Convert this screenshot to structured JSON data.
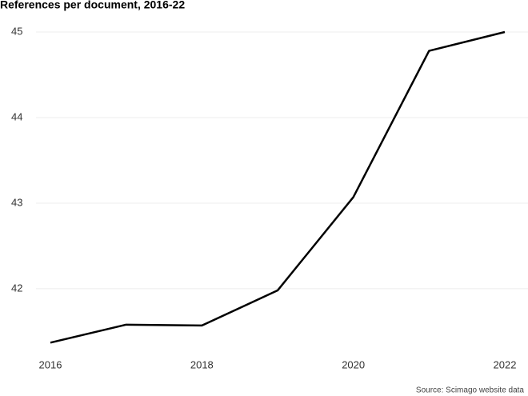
{
  "chart_data": {
    "type": "line",
    "title": "References per document, 2016-22",
    "source": "Source: Scimago website data",
    "x": [
      2016,
      2017,
      2018,
      2019,
      2020,
      2021,
      2022
    ],
    "series": [
      {
        "name": "References per document",
        "color": "#000000",
        "values": [
          41.37,
          41.58,
          41.57,
          41.98,
          43.07,
          44.78,
          45.0
        ]
      }
    ],
    "xlim": [
      2016,
      2022
    ],
    "xticks": [
      2016,
      2018,
      2020,
      2022
    ],
    "ylim": [
      41.27,
      45.05
    ],
    "yticks": [
      42,
      43,
      44,
      45
    ],
    "grid": true
  }
}
